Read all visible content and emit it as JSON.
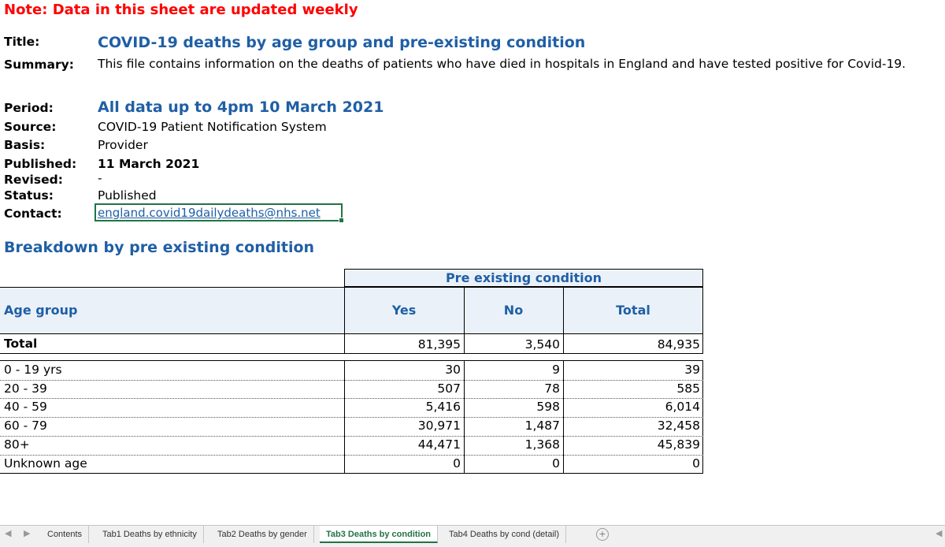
{
  "note": "Note: Data in this sheet are updated weekly",
  "meta": {
    "title_label": "Title:",
    "title_value": "COVID-19 deaths by age group and pre-existing condition",
    "summary_label": "Summary:",
    "summary_value": "This file contains information on the deaths of patients who have died in hospitals in England and have tested positive for Covid-19.",
    "period_label": "Period:",
    "period_value": "All data up to 4pm 10 March 2021",
    "source_label": "Source:",
    "source_value": "COVID-19 Patient Notification System",
    "basis_label": "Basis:",
    "basis_value": "Provider",
    "published_label": "Published:",
    "published_value": "11 March 2021",
    "revised_label": "Revised:",
    "revised_value": "-",
    "status_label": "Status:",
    "status_value": "Published",
    "contact_label": "Contact:",
    "contact_value": "england.covid19dailydeaths@nhs.net"
  },
  "section_title": "Breakdown by pre existing condition",
  "table": {
    "group_header": "Pre existing condition",
    "col_age": "Age group",
    "col_yes": "Yes",
    "col_no": "No",
    "col_total": "Total",
    "total_row": {
      "label": "Total",
      "yes": "81,395",
      "no": "3,540",
      "total": "84,935"
    },
    "rows": [
      {
        "label": "0 - 19 yrs",
        "yes": "30",
        "no": "9",
        "total": "39"
      },
      {
        "label": "20 - 39",
        "yes": "507",
        "no": "78",
        "total": "585"
      },
      {
        "label": "40 - 59",
        "yes": "5,416",
        "no": "598",
        "total": "6,014"
      },
      {
        "label": "60 - 79",
        "yes": "30,971",
        "no": "1,487",
        "total": "32,458"
      },
      {
        "label": "80+",
        "yes": "44,471",
        "no": "1,368",
        "total": "45,839"
      },
      {
        "label": "Unknown age",
        "yes": "0",
        "no": "0",
        "total": "0"
      }
    ]
  },
  "tabs": [
    {
      "label": "Contents"
    },
    {
      "label": "Tab1 Deaths by ethnicity"
    },
    {
      "label": "Tab2 Deaths by gender"
    },
    {
      "label": "Tab3 Deaths by condition"
    },
    {
      "label": "Tab4 Deaths by cond (detail)"
    }
  ],
  "accent_color": "#1f5fa5",
  "note_color": "#ff0000",
  "active_tab_color": "#217346"
}
